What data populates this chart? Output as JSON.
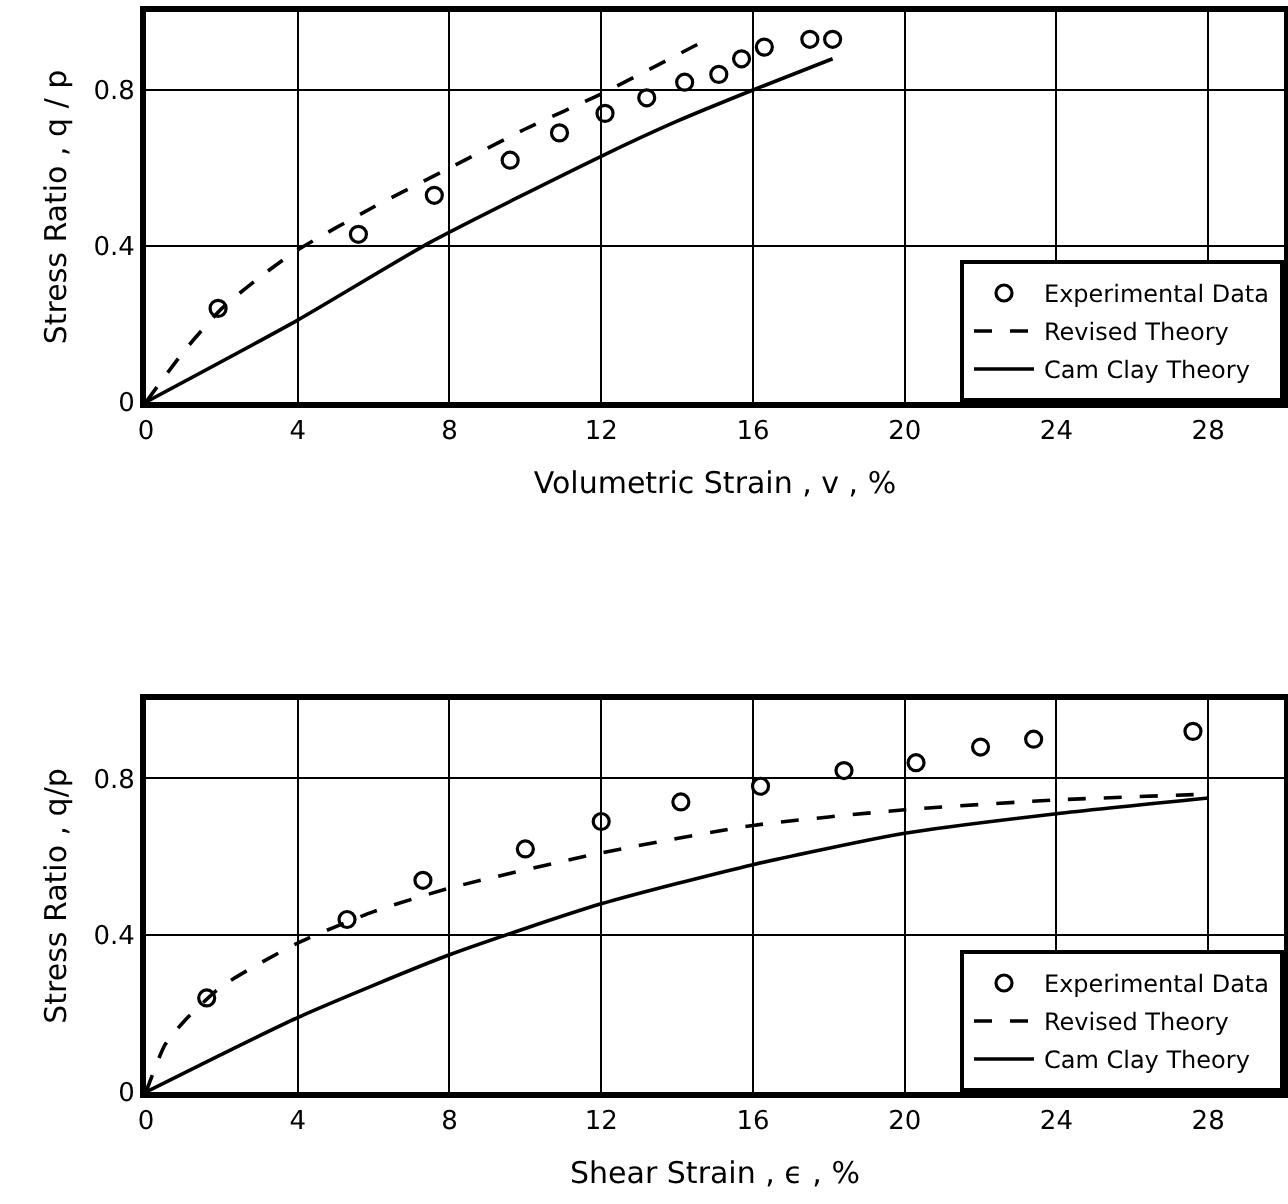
{
  "chart_data": [
    {
      "type": "line",
      "xlabel": "Volumetric Strain , v , %",
      "ylabel": "Stress Ratio , q / p",
      "xlim": [
        0,
        30
      ],
      "ylim": [
        0,
        1
      ],
      "xticks": [
        0,
        4,
        8,
        12,
        16,
        20,
        24,
        28
      ],
      "yticks": [
        0,
        0.4,
        0.8
      ],
      "grid": true,
      "legend": "bottom right",
      "series": [
        {
          "name": "Experimental Data",
          "type": "scatter",
          "marker": "circle",
          "color": "#000000",
          "x": [
            1.9,
            5.6,
            7.6,
            9.6,
            10.9,
            12.1,
            13.2,
            14.2,
            15.1,
            15.7,
            16.3,
            17.5,
            18.1
          ],
          "values": [
            0.24,
            0.43,
            0.53,
            0.62,
            0.69,
            0.74,
            0.78,
            0.82,
            0.84,
            0.88,
            0.91,
            0.93,
            0.93
          ]
        },
        {
          "name": "Revised Theory",
          "line_style": "dashed",
          "color": "#000000",
          "x": [
            0,
            1,
            2,
            3,
            4,
            6,
            8,
            10,
            12,
            14.6
          ],
          "values": [
            0,
            0.13,
            0.24,
            0.32,
            0.39,
            0.5,
            0.6,
            0.7,
            0.79,
            0.92
          ]
        },
        {
          "name": "Cam Clay Theory",
          "line_style": "solid",
          "color": "#000000",
          "x": [
            0,
            4,
            7.5,
            12,
            14,
            16,
            18.1
          ],
          "values": [
            0,
            0.21,
            0.41,
            0.63,
            0.72,
            0.8,
            0.88
          ]
        }
      ]
    },
    {
      "type": "line",
      "xlabel": "Shear Strain , ϵ , %",
      "ylabel": "Stress Ratio , q/p",
      "xlim": [
        0,
        30
      ],
      "ylim": [
        0,
        1
      ],
      "xticks": [
        0,
        4,
        8,
        12,
        16,
        20,
        24,
        28
      ],
      "yticks": [
        0,
        0.4,
        0.8
      ],
      "grid": true,
      "legend": "bottom right",
      "series": [
        {
          "name": "Experimental Data",
          "type": "scatter",
          "marker": "circle",
          "color": "#000000",
          "x": [
            1.6,
            5.3,
            7.3,
            10.0,
            12.0,
            14.1,
            16.2,
            18.4,
            20.3,
            22.0,
            23.4,
            27.6
          ],
          "values": [
            0.24,
            0.44,
            0.54,
            0.62,
            0.69,
            0.74,
            0.78,
            0.82,
            0.84,
            0.88,
            0.9,
            0.92
          ]
        },
        {
          "name": "Revised Theory",
          "line_style": "dashed",
          "color": "#000000",
          "x": [
            0,
            0.5,
            1,
            2,
            4,
            6,
            8,
            12,
            16,
            20,
            24,
            28
          ],
          "values": [
            0,
            0.12,
            0.18,
            0.27,
            0.38,
            0.46,
            0.52,
            0.61,
            0.68,
            0.72,
            0.745,
            0.76
          ]
        },
        {
          "name": "Cam Clay Theory",
          "line_style": "solid",
          "color": "#000000",
          "x": [
            0,
            4,
            8,
            12,
            16,
            20,
            24,
            28
          ],
          "values": [
            0,
            0.19,
            0.35,
            0.48,
            0.58,
            0.66,
            0.71,
            0.75
          ]
        }
      ]
    }
  ]
}
